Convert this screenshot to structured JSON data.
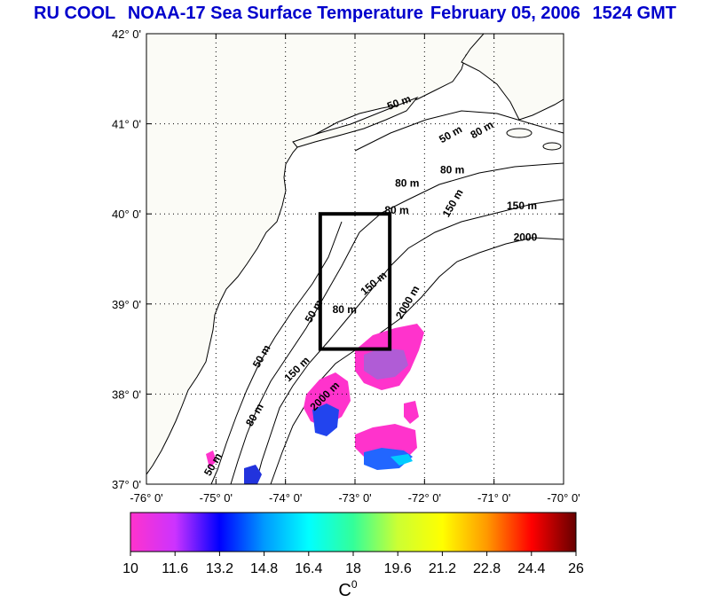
{
  "title": {
    "parts": [
      "RU COOL",
      "NOAA-17 Sea Surface Temperature",
      "February 05, 2006",
      "1524 GMT"
    ],
    "color": "#0000cc"
  },
  "map": {
    "lon_range": [
      -76,
      -70
    ],
    "lat_range": [
      37,
      42
    ],
    "lon_ticks": [
      "-76° 0'",
      "-75° 0'",
      "-74° 0'",
      "-73° 0'",
      "-72° 0'",
      "-71° 0'",
      "-70° 0'"
    ],
    "lat_ticks": [
      "37° 0'",
      "38° 0'",
      "39° 0'",
      "40° 0'",
      "41° 0'",
      "42° 0'"
    ],
    "grid": "dotted",
    "land_color": "#ffffff",
    "box": {
      "lon": [
        -73.5,
        -72.5
      ],
      "lat": [
        38.5,
        40.0
      ]
    },
    "contour_labels": [
      {
        "text": "50 m",
        "lon": -72.35,
        "lat": 41.2,
        "rot": -20
      },
      {
        "text": "50 m",
        "lon": -71.6,
        "lat": 40.85,
        "rot": -30
      },
      {
        "text": "80 m",
        "lon": -71.15,
        "lat": 40.9,
        "rot": -30
      },
      {
        "text": "80 m",
        "lon": -71.6,
        "lat": 40.45,
        "rot": 0
      },
      {
        "text": "80 m",
        "lon": -72.25,
        "lat": 40.3,
        "rot": 0
      },
      {
        "text": "80 m",
        "lon": -72.4,
        "lat": 40.0,
        "rot": 0
      },
      {
        "text": "150 m",
        "lon": -71.55,
        "lat": 40.1,
        "rot": -60
      },
      {
        "text": "150 m",
        "lon": -70.6,
        "lat": 40.05,
        "rot": 0
      },
      {
        "text": "2000",
        "lon": -70.55,
        "lat": 39.7,
        "rot": 0
      },
      {
        "text": "2000 m",
        "lon": -72.2,
        "lat": 39.0,
        "rot": -60
      },
      {
        "text": "150 m",
        "lon": -72.7,
        "lat": 39.2,
        "rot": -40
      },
      {
        "text": "80 m",
        "lon": -73.15,
        "lat": 38.9,
        "rot": 0
      },
      {
        "text": "50 m",
        "lon": -73.55,
        "lat": 38.9,
        "rot": -60
      },
      {
        "text": "50 m",
        "lon": -74.3,
        "lat": 38.4,
        "rot": -60
      },
      {
        "text": "150 m",
        "lon": -73.8,
        "lat": 38.25,
        "rot": -45
      },
      {
        "text": "2000 m",
        "lon": -73.4,
        "lat": 37.95,
        "rot": -45
      },
      {
        "text": "80 m",
        "lon": -74.4,
        "lat": 37.75,
        "rot": -60
      },
      {
        "text": "50 m",
        "lon": -75.0,
        "lat": 37.2,
        "rot": -60
      }
    ]
  },
  "colorbar": {
    "min": 10,
    "max": 26,
    "ticks": [
      "10",
      "11.6",
      "13.2",
      "14.8",
      "16.4",
      "18",
      "19.6",
      "21.2",
      "22.8",
      "24.4",
      "26"
    ],
    "colors": [
      "#ff33cc",
      "#cc33ff",
      "#0000ff",
      "#0099ff",
      "#00ffff",
      "#33ff99",
      "#ccff33",
      "#ffff00",
      "#ff9900",
      "#ff0000",
      "#660000"
    ],
    "unit_label": "C",
    "unit_sup": "0"
  }
}
